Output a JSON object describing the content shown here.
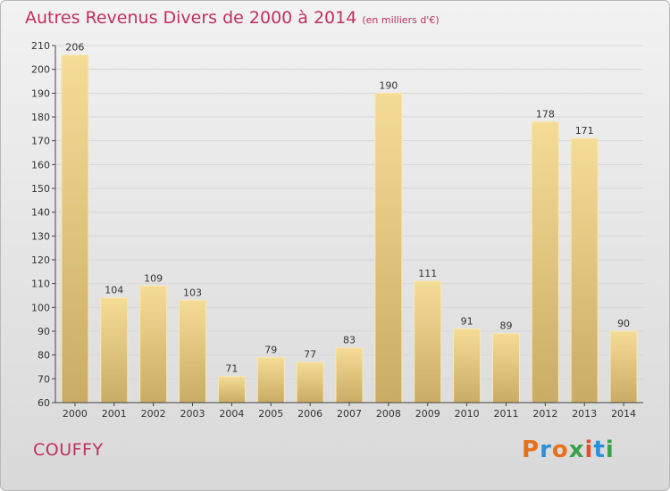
{
  "title": "Autres Revenus Divers de 2000 à 2014",
  "unit_label": "(en milliers d'€)",
  "commune": "COUFFY",
  "brand": "Proxiti",
  "colors": {
    "title": "#c0305f",
    "bar_light": "#f5dc96",
    "bar_dark": "#c9ac66",
    "bar_edge": "#f7e8b4",
    "grid": "#d6d6d6",
    "axis": "#444444",
    "text": "#333333",
    "brand_letters": [
      "#e8701a",
      "#2e8fd6",
      "#e8701a",
      "#3aa34a",
      "#e84a2a",
      "#2e8fd6",
      "#3aa34a"
    ]
  },
  "chart_data": {
    "type": "bar",
    "title": "Autres Revenus Divers de 2000 à 2014",
    "xlabel": "",
    "ylabel": "",
    "categories": [
      "2000",
      "2001",
      "2002",
      "2003",
      "2004",
      "2005",
      "2006",
      "2007",
      "2008",
      "2009",
      "2010",
      "2011",
      "2012",
      "2013",
      "2014"
    ],
    "values": [
      206,
      104,
      109,
      103,
      71,
      79,
      77,
      83,
      190,
      111,
      91,
      89,
      178,
      171,
      90
    ],
    "ylim": [
      60,
      210
    ],
    "yticks": [
      60,
      70,
      80,
      90,
      100,
      110,
      120,
      130,
      140,
      150,
      160,
      170,
      180,
      190,
      200,
      210
    ],
    "grid": true,
    "data_labels": true
  }
}
